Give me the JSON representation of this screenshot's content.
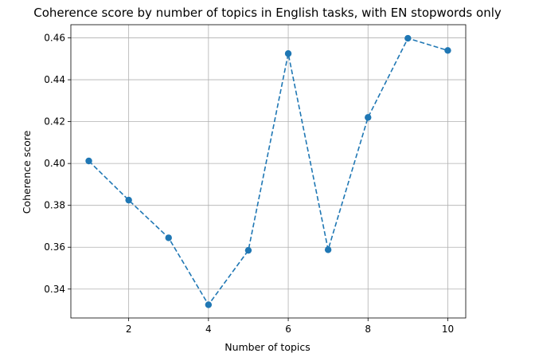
{
  "chart_data": {
    "type": "line",
    "title": "Coherence score by number of topics in English tasks, with EN stopwords only",
    "xlabel": "Number of topics",
    "ylabel": "Coherence score",
    "x": [
      1,
      2,
      3,
      4,
      5,
      6,
      7,
      8,
      9,
      10
    ],
    "series": [
      {
        "values": [
          0.4012,
          0.3825,
          0.3645,
          0.3325,
          0.3585,
          0.4525,
          0.3588,
          0.422,
          0.4598,
          0.454
        ],
        "color": "#1f77b4",
        "line_style": "dashed",
        "marker": "circle"
      }
    ],
    "xlim": [
      0.55,
      10.45
    ],
    "ylim": [
      0.3262,
      0.4663
    ],
    "xticks": [
      2,
      4,
      6,
      8,
      10
    ],
    "yticks": [
      0.34,
      0.36,
      0.38,
      0.4,
      0.42,
      0.44,
      0.46
    ],
    "xtick_labels": [
      "2",
      "4",
      "6",
      "8",
      "10"
    ],
    "ytick_labels": [
      "0.34",
      "0.36",
      "0.38",
      "0.40",
      "0.42",
      "0.44",
      "0.46"
    ],
    "grid": true,
    "legend": "none"
  }
}
